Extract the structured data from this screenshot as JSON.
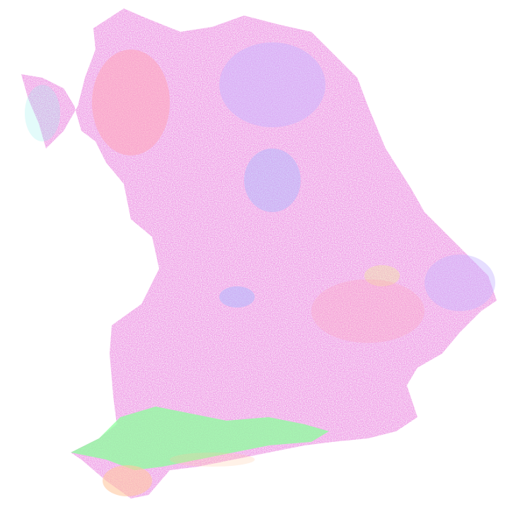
{
  "map": {
    "colors": {
      "background": "#ffffff",
      "dominant_pink": "#f0a0e8",
      "salmon": "#ffa6b8",
      "lavender": "#c8b6ff",
      "periwinkle": "#a9b8ff",
      "green": "#8cff9c",
      "peach": "#ffc8a0",
      "cyan": "#8ff0ea",
      "yellow": "#f2f28c"
    },
    "regions": [
      {
        "name": "main-territory",
        "color_key": "dominant_pink"
      },
      {
        "name": "northwest-salmon-cluster",
        "color_key": "salmon"
      },
      {
        "name": "northeast-lavender-cluster",
        "color_key": "lavender"
      },
      {
        "name": "east-central-periwinkle-cluster",
        "color_key": "periwinkle"
      },
      {
        "name": "alpine-south-green-band",
        "color_key": "green"
      },
      {
        "name": "southwest-peach-patch",
        "color_key": "peach"
      }
    ]
  }
}
